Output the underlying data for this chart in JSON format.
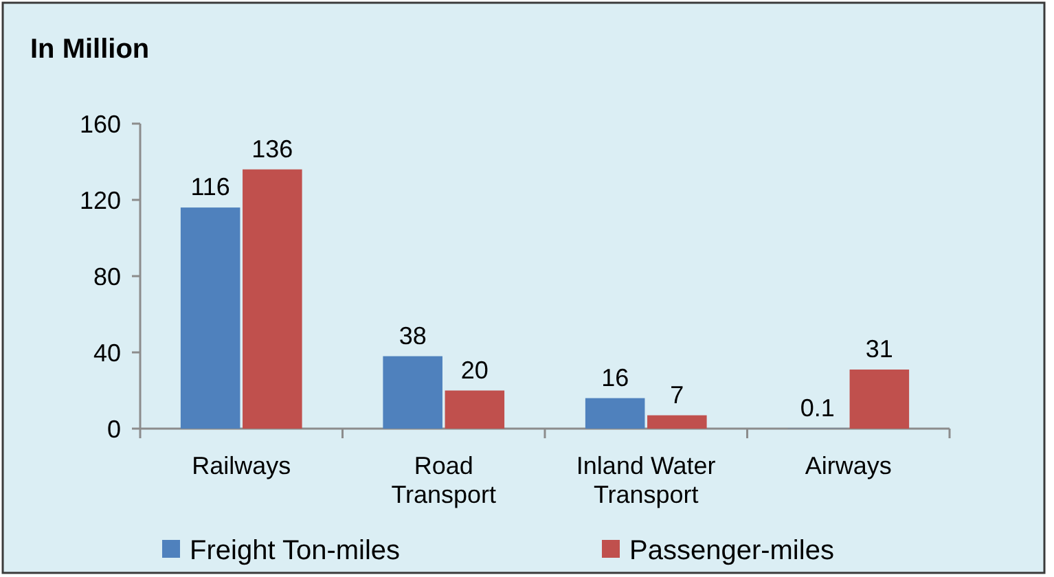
{
  "chart_data": {
    "type": "bar",
    "title": "In Million",
    "categories": [
      "Railways",
      "Road Transport",
      "Inland Water Transport",
      "Airways"
    ],
    "series": [
      {
        "name": "Freight Ton-miles",
        "color": "#4f81bd",
        "values": [
          116,
          38,
          16,
          0.1
        ]
      },
      {
        "name": "Passenger-miles",
        "color": "#c0504d",
        "values": [
          136,
          20,
          7,
          31
        ]
      }
    ],
    "ylim": [
      0,
      160
    ],
    "yticks": [
      0,
      40,
      80,
      120,
      160
    ],
    "data_labels": true,
    "legend": "bottom"
  }
}
